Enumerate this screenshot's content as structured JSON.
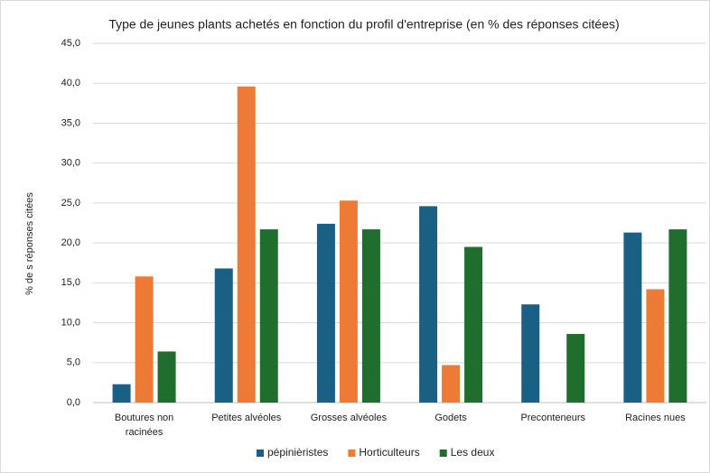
{
  "chart_data": {
    "type": "bar",
    "title": "Type de jeunes plants achetés en fonction du profil d'entreprise (en % des réponses citées)",
    "y_label": "% de s réponses citées",
    "categories": [
      "Boutures non racinées",
      "Petites alvéoles",
      "Grosses alvéoles",
      "Godets",
      "Preconteneurs",
      "Racines nues"
    ],
    "series": [
      {
        "name": "pépinièristes",
        "color": "#1a5f84",
        "values": [
          2.3,
          16.8,
          22.4,
          24.6,
          12.3,
          21.3
        ]
      },
      {
        "name": "Horticulteurs",
        "color": "#ee7b35",
        "values": [
          15.8,
          39.6,
          25.3,
          4.7,
          0,
          14.2
        ]
      },
      {
        "name": "Les deux",
        "color": "#1f6e2e",
        "values": [
          6.4,
          21.7,
          21.7,
          19.5,
          8.6,
          21.7
        ]
      }
    ],
    "ylim": [
      0,
      45
    ],
    "yticks": [
      {
        "value": 0,
        "label": "0,0"
      },
      {
        "value": 5,
        "label": "5,0"
      },
      {
        "value": 10,
        "label": "10,0"
      },
      {
        "value": 15,
        "label": "15,0"
      },
      {
        "value": 20,
        "label": "20,0"
      },
      {
        "value": 25,
        "label": "25,0"
      },
      {
        "value": 30,
        "label": "30,0"
      },
      {
        "value": 35,
        "label": "35,0"
      },
      {
        "value": 40,
        "label": "40,0"
      },
      {
        "value": 45,
        "label": "45,0"
      }
    ],
    "legend": "bottom"
  }
}
